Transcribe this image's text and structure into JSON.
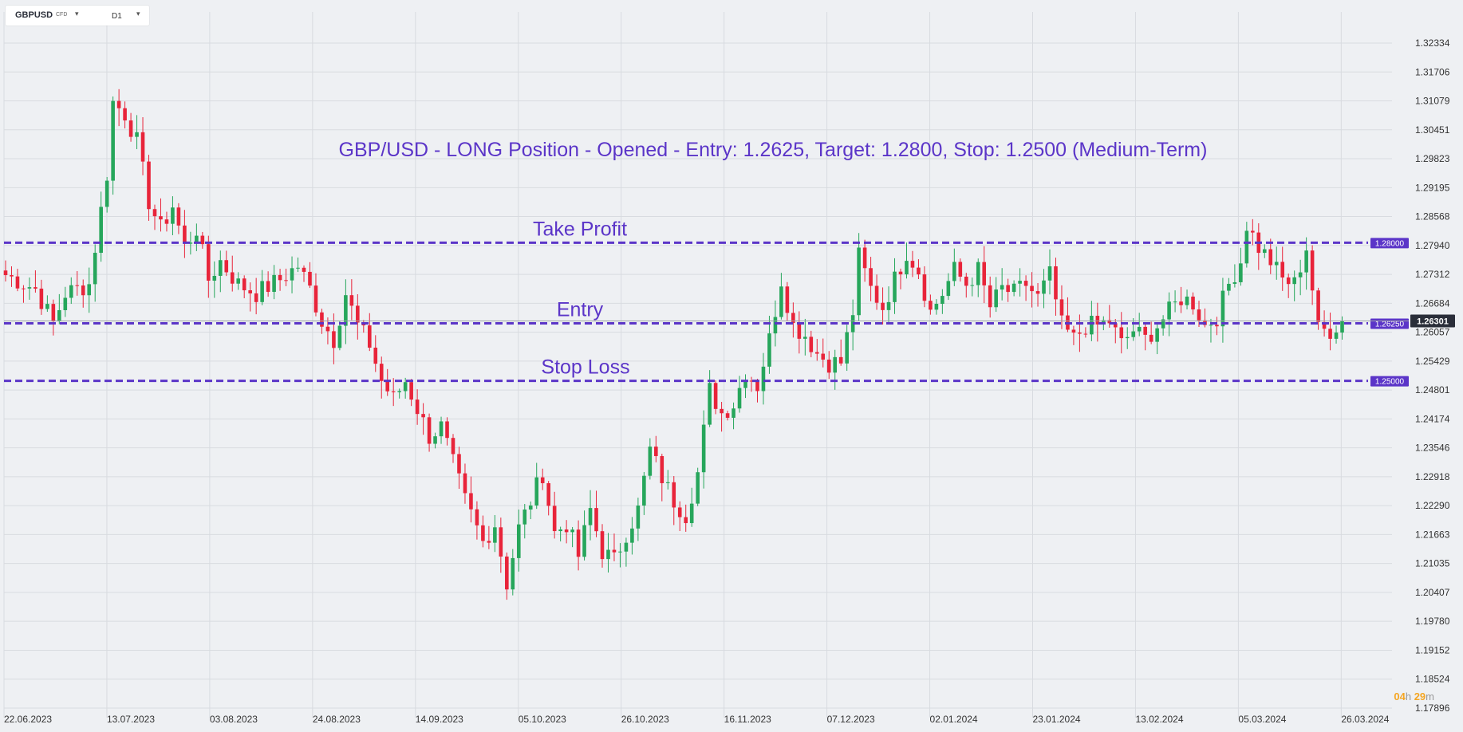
{
  "toolbar": {
    "symbol": "GBPUSD",
    "instrument_type": "CFD",
    "timeframe": "D1",
    "symbol_dropdown_icon": "caret-down-icon",
    "timeframe_dropdown_icon": "caret-down-icon"
  },
  "countdown": {
    "hours": "04",
    "h_label": "h",
    "minutes": "29",
    "m_label": "m"
  },
  "colors": {
    "background": "#eef0f3",
    "grid": "#d8dbe0",
    "bull": "#26a65b",
    "bear": "#e8243a",
    "level": "#5b35c8",
    "annotation": "#5b35c8",
    "last_price_bg": "#2a2e39",
    "countdown_num": "#f5a623"
  },
  "chart_data": {
    "type": "candlestick",
    "title": "GBP/USD - LONG Position - Opened - Entry: 1.2625, Target: 1.2800, Stop: 1.2500 (Medium-Term)",
    "xlabel": "",
    "ylabel": "",
    "grid": true,
    "ylim": [
      1.1765,
      1.3272
    ],
    "y_ticks": [
      "1.32334",
      "1.31706",
      "1.31079",
      "1.30451",
      "1.29823",
      "1.29195",
      "1.28568",
      "1.27940",
      "1.27312",
      "1.26684",
      "1.26057",
      "1.25429",
      "1.24801",
      "1.24174",
      "1.23546",
      "1.22918",
      "1.22290",
      "1.21663",
      "1.21035",
      "1.20407",
      "1.19780",
      "1.19152",
      "1.18524",
      "1.17896"
    ],
    "x_ticks": [
      "22.06.2023",
      "13.07.2023",
      "03.08.2023",
      "24.08.2023",
      "14.09.2023",
      "05.10.2023",
      "26.10.2023",
      "16.11.2023",
      "07.12.2023",
      "02.01.2024",
      "23.01.2024",
      "13.02.2024",
      "05.03.2024",
      "26.03.2024"
    ],
    "levels": [
      {
        "name": "Take Profit",
        "value": 1.28,
        "label": "1.28000"
      },
      {
        "name": "Entry",
        "value": 1.2625,
        "label": "1.26250"
      },
      {
        "name": "Stop Loss",
        "value": 1.25,
        "label": "1.25000"
      }
    ],
    "last_price": {
      "value": 1.26301,
      "label": "1.26301"
    },
    "anchors": [
      [
        0,
        1.273
      ],
      [
        5,
        1.27
      ],
      [
        8,
        1.2625
      ],
      [
        10,
        1.269
      ],
      [
        14,
        1.271
      ],
      [
        17,
        1.295
      ],
      [
        18,
        1.3105
      ],
      [
        20,
        1.308
      ],
      [
        22,
        1.302
      ],
      [
        24,
        1.289
      ],
      [
        26,
        1.283
      ],
      [
        28,
        1.288
      ],
      [
        30,
        1.279
      ],
      [
        32,
        1.283
      ],
      [
        34,
        1.272
      ],
      [
        36,
        1.276
      ],
      [
        39,
        1.271
      ],
      [
        42,
        1.269
      ],
      [
        46,
        1.272
      ],
      [
        49,
        1.275
      ],
      [
        51,
        1.27
      ],
      [
        53,
        1.263
      ],
      [
        55,
        1.259
      ],
      [
        57,
        1.269
      ],
      [
        59,
        1.262
      ],
      [
        61,
        1.258
      ],
      [
        63,
        1.25
      ],
      [
        65,
        1.246
      ],
      [
        67,
        1.25
      ],
      [
        69,
        1.244
      ],
      [
        71,
        1.238
      ],
      [
        73,
        1.24
      ],
      [
        75,
        1.232
      ],
      [
        77,
        1.224
      ],
      [
        80,
        1.215
      ],
      [
        82,
        1.219
      ],
      [
        84,
        1.206
      ],
      [
        86,
        1.218
      ],
      [
        88,
        1.224
      ],
      [
        90,
        1.23
      ],
      [
        92,
        1.217
      ],
      [
        94,
        1.219
      ],
      [
        96,
        1.212
      ],
      [
        98,
        1.222
      ],
      [
        100,
        1.213
      ],
      [
        102,
        1.211
      ],
      [
        104,
        1.217
      ],
      [
        106,
        1.222
      ],
      [
        108,
        1.235
      ],
      [
        110,
        1.229
      ],
      [
        112,
        1.224
      ],
      [
        114,
        1.221
      ],
      [
        116,
        1.23
      ],
      [
        118,
        1.248
      ],
      [
        120,
        1.243
      ],
      [
        122,
        1.245
      ],
      [
        124,
        1.252
      ],
      [
        126,
        1.249
      ],
      [
        128,
        1.259
      ],
      [
        130,
        1.272
      ],
      [
        132,
        1.262
      ],
      [
        134,
        1.26
      ],
      [
        136,
        1.256
      ],
      [
        138,
        1.254
      ],
      [
        140,
        1.254
      ],
      [
        142,
        1.265
      ],
      [
        143,
        1.277
      ],
      [
        145,
        1.27
      ],
      [
        147,
        1.266
      ],
      [
        149,
        1.272
      ],
      [
        151,
        1.278
      ],
      [
        153,
        1.274
      ],
      [
        155,
        1.265
      ],
      [
        157,
        1.269
      ],
      [
        159,
        1.274
      ],
      [
        161,
        1.271
      ],
      [
        163,
        1.274
      ],
      [
        165,
        1.266
      ],
      [
        167,
        1.27
      ],
      [
        169,
        1.269
      ],
      [
        171,
        1.271
      ],
      [
        173,
        1.268
      ],
      [
        175,
        1.273
      ],
      [
        177,
        1.262
      ],
      [
        179,
        1.259
      ],
      [
        181,
        1.262
      ],
      [
        183,
        1.262
      ],
      [
        185,
        1.263
      ],
      [
        187,
        1.258
      ],
      [
        189,
        1.261
      ],
      [
        191,
        1.259
      ],
      [
        193,
        1.262
      ],
      [
        195,
        1.265
      ],
      [
        197,
        1.268
      ],
      [
        199,
        1.267
      ],
      [
        201,
        1.262
      ],
      [
        203,
        1.264
      ],
      [
        205,
        1.271
      ],
      [
        207,
        1.276
      ],
      [
        208,
        1.284
      ],
      [
        210,
        1.279
      ],
      [
        212,
        1.276
      ],
      [
        214,
        1.272
      ],
      [
        216,
        1.271
      ],
      [
        218,
        1.279
      ],
      [
        220,
        1.261
      ],
      [
        222,
        1.261
      ],
      [
        224,
        1.263
      ]
    ]
  }
}
